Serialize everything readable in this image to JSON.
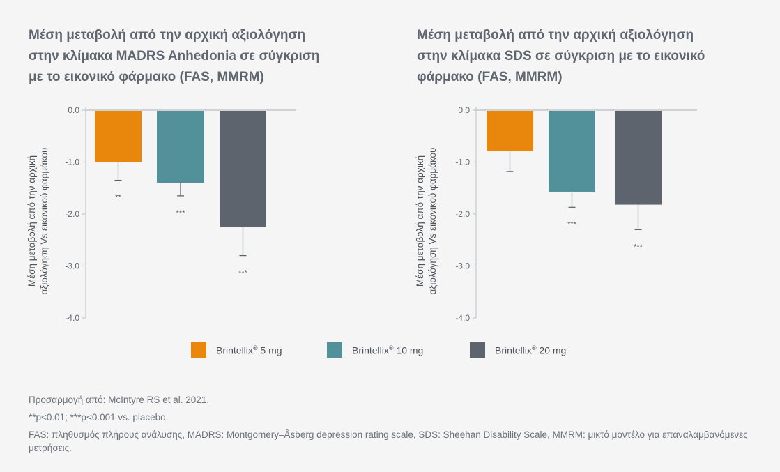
{
  "chart_data": [
    {
      "type": "bar",
      "title": "Μέση μεταβολή από την αρχική αξιολόγηση στην κλίμακα MADRS Anhedonia σε σύγκριση με το εικονικό φάρμακο (FAS, MMRM)",
      "title_lines": [
        "Μέση μεταβολή από την αρχική αξιολόγηση",
        "στην κλίμακα MADRS Anhedonia σε σύγκριση",
        "με το εικονικό φάρμακο (FAS, MMRM)"
      ],
      "ylabel_lines": [
        "Μέση μεταβολή από την αρχική",
        "αξιολόγηση Vs εικονικού φαρμάκου"
      ],
      "ylim": [
        -4.0,
        0.0
      ],
      "yticks": [
        "0.0",
        "-1.0",
        "-2.0",
        "-3.0",
        "-4.0"
      ],
      "series": [
        {
          "name": "Brintellix® 5 mg",
          "value": -1.0,
          "error_low": -1.35,
          "significance": "**"
        },
        {
          "name": "Brintellix® 10 mg",
          "value": -1.4,
          "error_low": -1.65,
          "significance": "***"
        },
        {
          "name": "Brintellix® 20 mg",
          "value": -2.25,
          "error_low": -2.8,
          "significance": "***"
        }
      ]
    },
    {
      "type": "bar",
      "title": "Μέση μεταβολή από την αρχική αξιολόγηση στην κλίμακα SDS σε σύγκριση με το εικονικό φάρμακο (FAS, MMRM)",
      "title_lines": [
        "Μέση μεταβολή από την αρχική αξιολόγηση",
        "στην κλίμακα SDS σε σύγκριση με το εικονικό",
        "φάρμακο (FAS, MMRM)"
      ],
      "ylabel_lines": [
        "Μέση μεταβολή από την αρχική",
        "αξιολόγηση Vs εικονικού φαρμάκου"
      ],
      "ylim": [
        -4.0,
        0.0
      ],
      "yticks": [
        "0.0",
        "-1.0",
        "-2.0",
        "-3.0",
        "-4.0"
      ],
      "series": [
        {
          "name": "Brintellix® 5 mg",
          "value": -0.78,
          "error_low": -1.18,
          "significance": ""
        },
        {
          "name": "Brintellix® 10 mg",
          "value": -1.57,
          "error_low": -1.87,
          "significance": "***"
        },
        {
          "name": "Brintellix® 20 mg",
          "value": -1.82,
          "error_low": -2.3,
          "significance": "***"
        }
      ]
    }
  ],
  "colors": {
    "bar_5mg": "#e8870c",
    "bar_10mg": "#52909a",
    "bar_20mg": "#5e646d",
    "axis": "#c4c7cb",
    "tick_text": "#5f6670"
  },
  "legend": [
    {
      "label": "Brintellix",
      "mark": "®",
      "dose": " 5 mg",
      "color": "#e8870c"
    },
    {
      "label": "Brintellix",
      "mark": "®",
      "dose": " 10 mg",
      "color": "#52909a"
    },
    {
      "label": "Brintellix",
      "mark": "®",
      "dose": " 20 mg",
      "color": "#5e646d"
    }
  ],
  "footnotes": {
    "source": "Προσαρμογή από: McIntyre RS et al. 2021.",
    "significance": "**p<0.01; ***p<0.001 vs. placebo.",
    "abbreviations": "FAS: πληθυσμός πλήρους ανάλυσης, MADRS: Montgomery–Åsberg depression rating scale, SDS: Sheehan Disability Scale, MMRM: μικτό μοντέλο για επαναλαμβανόμενες μετρήσεις."
  }
}
